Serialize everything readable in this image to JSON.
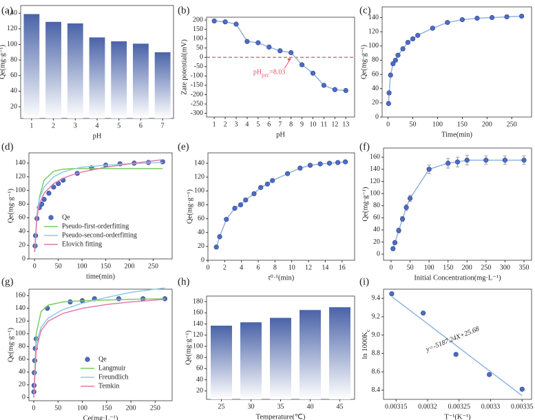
{
  "chart_data": [
    {
      "panel": "(a)",
      "type": "bar",
      "xlabel": "pH",
      "ylabel": "Qe(mg·g⁻¹)",
      "categories": [
        "1",
        "2",
        "3",
        "4",
        "5",
        "6",
        "7"
      ],
      "values": [
        139,
        129,
        127,
        109,
        104,
        101,
        90
      ],
      "color": "#4a63a8",
      "ylim": [
        5,
        150
      ],
      "yticks": [
        20,
        40,
        60,
        80,
        100,
        120,
        140
      ]
    },
    {
      "panel": "(b)",
      "type": "line",
      "xlabel": "pH",
      "ylabel": "Zate potential(mV)",
      "series": [
        {
          "x": [
            1,
            2,
            3,
            4,
            5,
            6,
            7,
            8,
            9,
            10,
            11,
            12,
            13
          ],
          "values": [
            195,
            190,
            178,
            85,
            78,
            55,
            35,
            25,
            -40,
            -85,
            -150,
            -173,
            -178
          ],
          "color": "#4d6cc4",
          "style": "markers-line",
          "line_color": "#8fb3e0"
        }
      ],
      "xlim": [
        0.3,
        13.8
      ],
      "xticks": [
        1,
        2,
        3,
        4,
        5,
        6,
        7,
        8,
        9,
        10,
        11,
        12,
        13
      ],
      "ylim": [
        -320,
        215
      ],
      "yticks": [
        -300,
        -250,
        -200,
        -150,
        -100,
        -50,
        0,
        50,
        100,
        150,
        200
      ],
      "hline": 0,
      "hline_color": "#e0506a",
      "annotation": [
        "pH",
        "pzc",
        "=8.03"
      ],
      "annotation_at": [
        8.03,
        0
      ]
    },
    {
      "panel": "(c)",
      "type": "line",
      "xlabel": "Time(min)",
      "ylabel": "Qe(mg·g⁻¹)",
      "series": [
        {
          "x": [
            1,
            2,
            5,
            10,
            15,
            20,
            30,
            40,
            50,
            60,
            90,
            120,
            150,
            180,
            210,
            240,
            270
          ],
          "values": [
            19,
            34,
            59,
            75,
            80,
            87,
            96,
            105,
            110,
            115,
            125,
            133,
            137,
            139,
            140,
            141,
            142
          ],
          "color": "#4d6cc4",
          "style": "markers-line",
          "line_color": "#8fb3e0"
        }
      ],
      "xlim": [
        -12,
        290
      ],
      "xticks": [
        0,
        50,
        100,
        150,
        200,
        250
      ],
      "ylim": [
        0,
        155
      ],
      "yticks": [
        0,
        20,
        40,
        60,
        80,
        100,
        120,
        140
      ]
    },
    {
      "panel": "(d)",
      "type": "line",
      "xlabel": "time(min)",
      "ylabel": "Qe(mg·g⁻¹)",
      "legend": "lower left",
      "series": [
        {
          "name": "Qe",
          "x": [
            1,
            2,
            5,
            10,
            15,
            20,
            30,
            40,
            50,
            60,
            90,
            120,
            150,
            180,
            210,
            240,
            270
          ],
          "values": [
            19,
            34,
            59,
            75,
            80,
            87,
            96,
            105,
            110,
            115,
            125,
            133,
            137,
            139,
            140,
            141,
            142
          ],
          "color": "#4d6cc4",
          "style": "markers"
        },
        {
          "name": "Pseudo-first-orderfitting",
          "x": [
            0,
            5,
            10,
            20,
            40,
            60,
            80,
            100,
            150,
            200,
            270
          ],
          "values": [
            10,
            60,
            90,
            115,
            128,
            131,
            132,
            132,
            132,
            132,
            132
          ],
          "color": "#7ccc5c",
          "style": "line"
        },
        {
          "name": "Pseudo-second-orderfitting",
          "x": [
            0,
            5,
            10,
            20,
            40,
            60,
            80,
            100,
            150,
            200,
            270
          ],
          "values": [
            10,
            65,
            88,
            105,
            120,
            127,
            131,
            134,
            137,
            139,
            141
          ],
          "color": "#8fc8e8",
          "style": "line"
        },
        {
          "name": "Elovich fitting",
          "x": [
            0,
            5,
            10,
            20,
            40,
            60,
            80,
            100,
            150,
            200,
            270
          ],
          "values": [
            10,
            62,
            80,
            96,
            110,
            118,
            123,
            127,
            134,
            139,
            145
          ],
          "color": "#e07aa8",
          "style": "line"
        }
      ],
      "xlim": [
        -12,
        290
      ],
      "xticks": [
        0,
        50,
        100,
        150,
        200,
        250
      ],
      "ylim": [
        0,
        155
      ],
      "yticks": [
        0,
        20,
        40,
        60,
        80,
        100,
        120,
        140
      ]
    },
    {
      "panel": "(e)",
      "type": "line",
      "xlabel": "t⁰·⁵(min)",
      "ylabel": "Qe(mg·g⁻¹)",
      "series": [
        {
          "x": [
            1,
            1.4,
            2.2,
            3.2,
            3.9,
            4.5,
            5.5,
            6.3,
            7.1,
            7.7,
            9.5,
            11,
            12.2,
            13.4,
            14.5,
            15.5,
            16.4
          ],
          "values": [
            19,
            34,
            59,
            75,
            80,
            87,
            96,
            105,
            110,
            115,
            125,
            133,
            137,
            139,
            140,
            141,
            142
          ],
          "color": "#4d6cc4",
          "style": "markers-line",
          "line_color": "#8fb3e0"
        }
      ],
      "xlim": [
        0,
        17.5
      ],
      "xticks": [
        0,
        2,
        4,
        6,
        8,
        10,
        12,
        14,
        16
      ],
      "ylim": [
        0,
        155
      ],
      "yticks": [
        0,
        20,
        40,
        60,
        80,
        100,
        120,
        140
      ]
    },
    {
      "panel": "(f)",
      "type": "line",
      "xlabel": "Initial Concentration(mg·L⁻¹)",
      "ylabel": "Qe(mg·g⁻¹)",
      "series": [
        {
          "x": [
            5,
            10,
            20,
            30,
            40,
            50,
            100,
            150,
            175,
            200,
            250,
            300,
            350
          ],
          "values": [
            9,
            19,
            39,
            58,
            77,
            92,
            140,
            150,
            152,
            155,
            155,
            155,
            155
          ],
          "errors": [
            3,
            3,
            4,
            4,
            5,
            5,
            7,
            8,
            8,
            8,
            7,
            7,
            7
          ],
          "color": "#4d6cc4",
          "style": "markers-line",
          "line_color": "#8fb3e0"
        }
      ],
      "xlim": [
        -20,
        370
      ],
      "xticks": [
        0,
        50,
        100,
        150,
        200,
        250,
        300,
        350
      ],
      "ylim": [
        -10,
        175
      ],
      "yticks": [
        0,
        20,
        40,
        60,
        80,
        100,
        120,
        140,
        160
      ]
    },
    {
      "panel": "(g)",
      "type": "line",
      "xlabel": "Ce(mg·L⁻¹)",
      "ylabel": "Qe(mg·g⁻¹)",
      "legend": "lower right",
      "series": [
        {
          "name": "Qe",
          "x": [
            0.2,
            0.5,
            1,
            2,
            3,
            5,
            28,
            75,
            100,
            125,
            175,
            225,
            270
          ],
          "values": [
            9,
            19,
            39,
            58,
            77,
            92,
            140,
            150,
            152,
            155,
            155,
            155,
            155
          ],
          "color": "#4d6cc4",
          "style": "markers"
        },
        {
          "name": "Langmuir",
          "x": [
            0,
            5,
            15,
            30,
            60,
            100,
            150,
            200,
            270
          ],
          "values": [
            0,
            100,
            135,
            145,
            150,
            152,
            153,
            154,
            155
          ],
          "color": "#7ccc5c",
          "style": "line"
        },
        {
          "name": "Freundlich",
          "x": [
            0,
            5,
            15,
            30,
            60,
            100,
            150,
            200,
            270
          ],
          "values": [
            0,
            85,
            110,
            125,
            138,
            148,
            157,
            165,
            172
          ],
          "color": "#8fc8e8",
          "style": "line"
        },
        {
          "name": "Temkin",
          "x": [
            0,
            5,
            15,
            30,
            60,
            100,
            150,
            200,
            270
          ],
          "values": [
            0,
            75,
            105,
            120,
            132,
            140,
            146,
            150,
            154
          ],
          "color": "#e07aa8",
          "style": "line"
        }
      ],
      "xlim": [
        -10,
        285
      ],
      "xticks": [
        0,
        50,
        100,
        150,
        200,
        250
      ],
      "ylim": [
        -5,
        170
      ],
      "yticks": [
        0,
        20,
        40,
        60,
        80,
        100,
        120,
        140,
        160
      ]
    },
    {
      "panel": "(h)",
      "type": "bar",
      "xlabel": "Temperature(℃)",
      "ylabel": "Qe(mg·g⁻¹)",
      "categories": [
        "25",
        "30",
        "35",
        "40",
        "45"
      ],
      "values": [
        137,
        143,
        151,
        165,
        170
      ],
      "color": "#4a63a8",
      "ylim": [
        5,
        190
      ],
      "yticks": [
        20,
        40,
        60,
        80,
        100,
        120,
        140,
        160,
        180
      ]
    },
    {
      "panel": "(i)",
      "type": "scatter",
      "xlabel": "T⁻¹(K⁻¹)",
      "ylabel": [
        "ln 1000K",
        "c"
      ],
      "series": [
        {
          "x": [
            0.003143,
            0.003193,
            0.003245,
            0.003298,
            0.00335
          ],
          "values": [
            9.45,
            9.24,
            8.79,
            8.57,
            8.41
          ],
          "color": "#4d6cc4",
          "style": "markers"
        },
        {
          "x": [
            0.003143,
            0.00335
          ],
          "values": [
            9.42,
            8.34
          ],
          "color": "#8fb3e0",
          "style": "line"
        }
      ],
      "xlim": [
        0.00313,
        0.003365
      ],
      "xticks": [
        0.00315,
        0.0032,
        0.00325,
        0.0033,
        0.00335
      ],
      "ylim": [
        8.3,
        9.5
      ],
      "yticks": [
        8.4,
        8.6,
        8.8,
        {
          "value": 9,
          "label": "9.0"
        },
        9.2,
        9.4
      ],
      "annotation": [
        "y=-5187.24X+25.68"
      ],
      "annotation_at": [
        0.00324,
        8.95
      ]
    }
  ]
}
